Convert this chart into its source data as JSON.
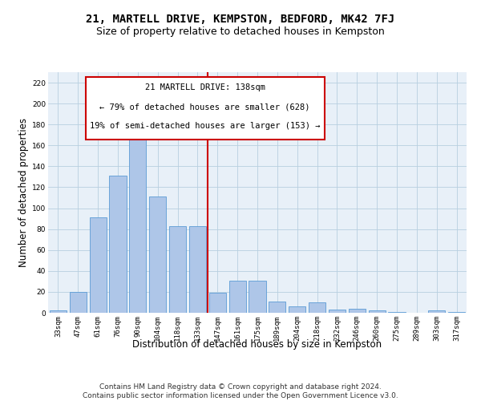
{
  "title": "21, MARTELL DRIVE, KEMPSTON, BEDFORD, MK42 7FJ",
  "subtitle": "Size of property relative to detached houses in Kempston",
  "xlabel": "Distribution of detached houses by size in Kempston",
  "ylabel": "Number of detached properties",
  "categories": [
    "33sqm",
    "47sqm",
    "61sqm",
    "76sqm",
    "90sqm",
    "104sqm",
    "118sqm",
    "133sqm",
    "147sqm",
    "161sqm",
    "175sqm",
    "189sqm",
    "204sqm",
    "218sqm",
    "232sqm",
    "246sqm",
    "260sqm",
    "275sqm",
    "289sqm",
    "303sqm",
    "317sqm"
  ],
  "values": [
    2,
    20,
    91,
    131,
    171,
    111,
    83,
    83,
    19,
    31,
    31,
    11,
    6,
    10,
    3,
    4,
    2,
    1,
    0,
    2,
    1
  ],
  "bar_color": "#aec6e8",
  "bar_edge_color": "#5b9bd5",
  "vline_index": 7.5,
  "annotation_text_line1": "21 MARTELL DRIVE: 138sqm",
  "annotation_text_line2": "← 79% of detached houses are smaller (628)",
  "annotation_text_line3": "19% of semi-detached houses are larger (153) →",
  "annotation_box_color": "#ffffff",
  "annotation_box_edge_color": "#cc0000",
  "vline_color": "#cc0000",
  "grid_color": "#b8cfe0",
  "background_color": "#e8f0f8",
  "ylim": [
    0,
    230
  ],
  "yticks": [
    0,
    20,
    40,
    60,
    80,
    100,
    120,
    140,
    160,
    180,
    200,
    220
  ],
  "footer_line1": "Contains HM Land Registry data © Crown copyright and database right 2024.",
  "footer_line2": "Contains public sector information licensed under the Open Government Licence v3.0.",
  "title_fontsize": 10,
  "subtitle_fontsize": 9,
  "tick_fontsize": 6.5,
  "ylabel_fontsize": 8.5,
  "xlabel_fontsize": 8.5,
  "annotation_fontsize": 7.5,
  "footer_fontsize": 6.5
}
